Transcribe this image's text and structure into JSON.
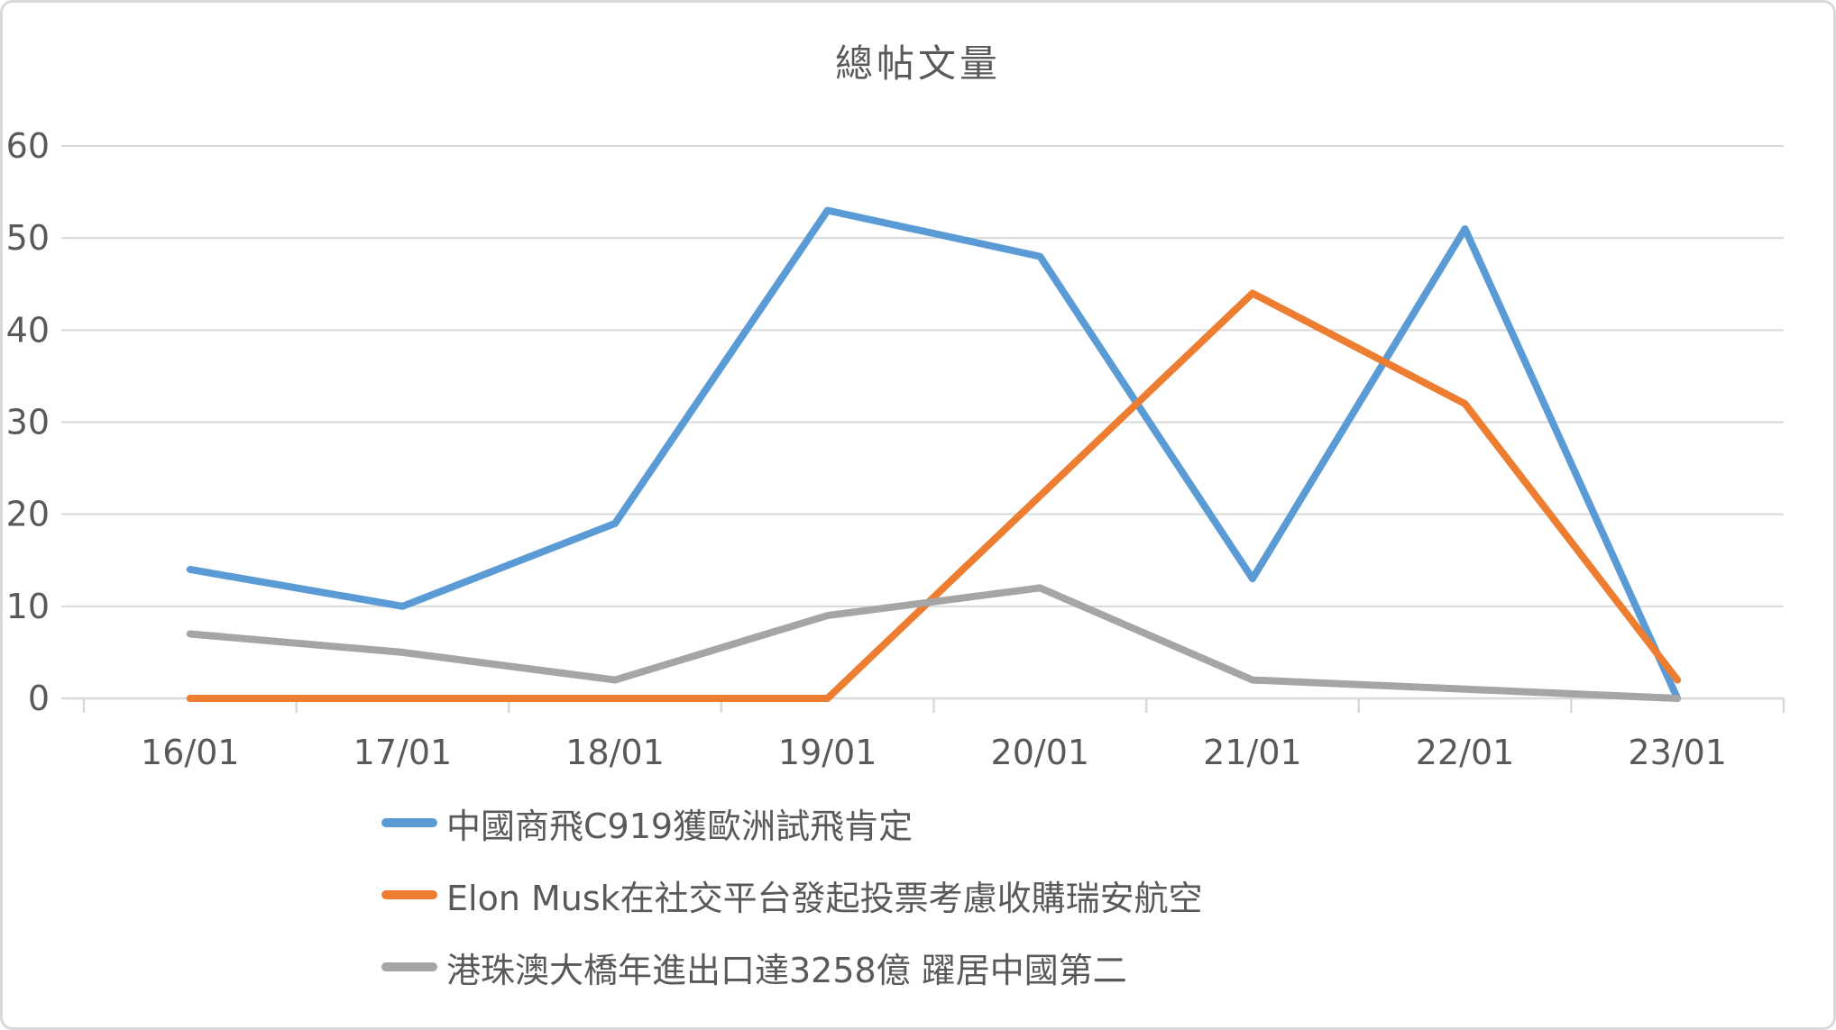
{
  "chart_data": {
    "type": "line",
    "title": "總帖文量",
    "categories": [
      "16/01",
      "17/01",
      "18/01",
      "19/01",
      "20/01",
      "21/01",
      "22/01",
      "23/01"
    ],
    "series": [
      {
        "name": "中國商飛C919獲歐洲試飛肯定",
        "color": "#5B9BD5",
        "values": [
          14,
          10,
          19,
          53,
          48,
          13,
          51,
          0
        ]
      },
      {
        "name": "Elon Musk在社交平台發起投票考慮收購瑞安航空",
        "color": "#ED7D31",
        "values": [
          0,
          0,
          0,
          0,
          22,
          44,
          32,
          2
        ]
      },
      {
        "name": "港珠澳大橋年進出口達3258億 躍居中國第二",
        "color": "#A5A5A5",
        "values": [
          7,
          5,
          2,
          9,
          12,
          2,
          1,
          0
        ]
      }
    ],
    "xlabel": "",
    "ylabel": "",
    "ylim": [
      0,
      60
    ],
    "yticks": [
      0,
      10,
      20,
      30,
      40,
      50,
      60
    ],
    "grid": true,
    "legend_position": "bottom-left"
  },
  "styles": {
    "text_color": "#595959",
    "gridline_color": "#D9D9D9",
    "axis_color": "#D9D9D9",
    "background": "#FFFFFF",
    "border_color": "#D9D9D9",
    "line_width": 8
  }
}
